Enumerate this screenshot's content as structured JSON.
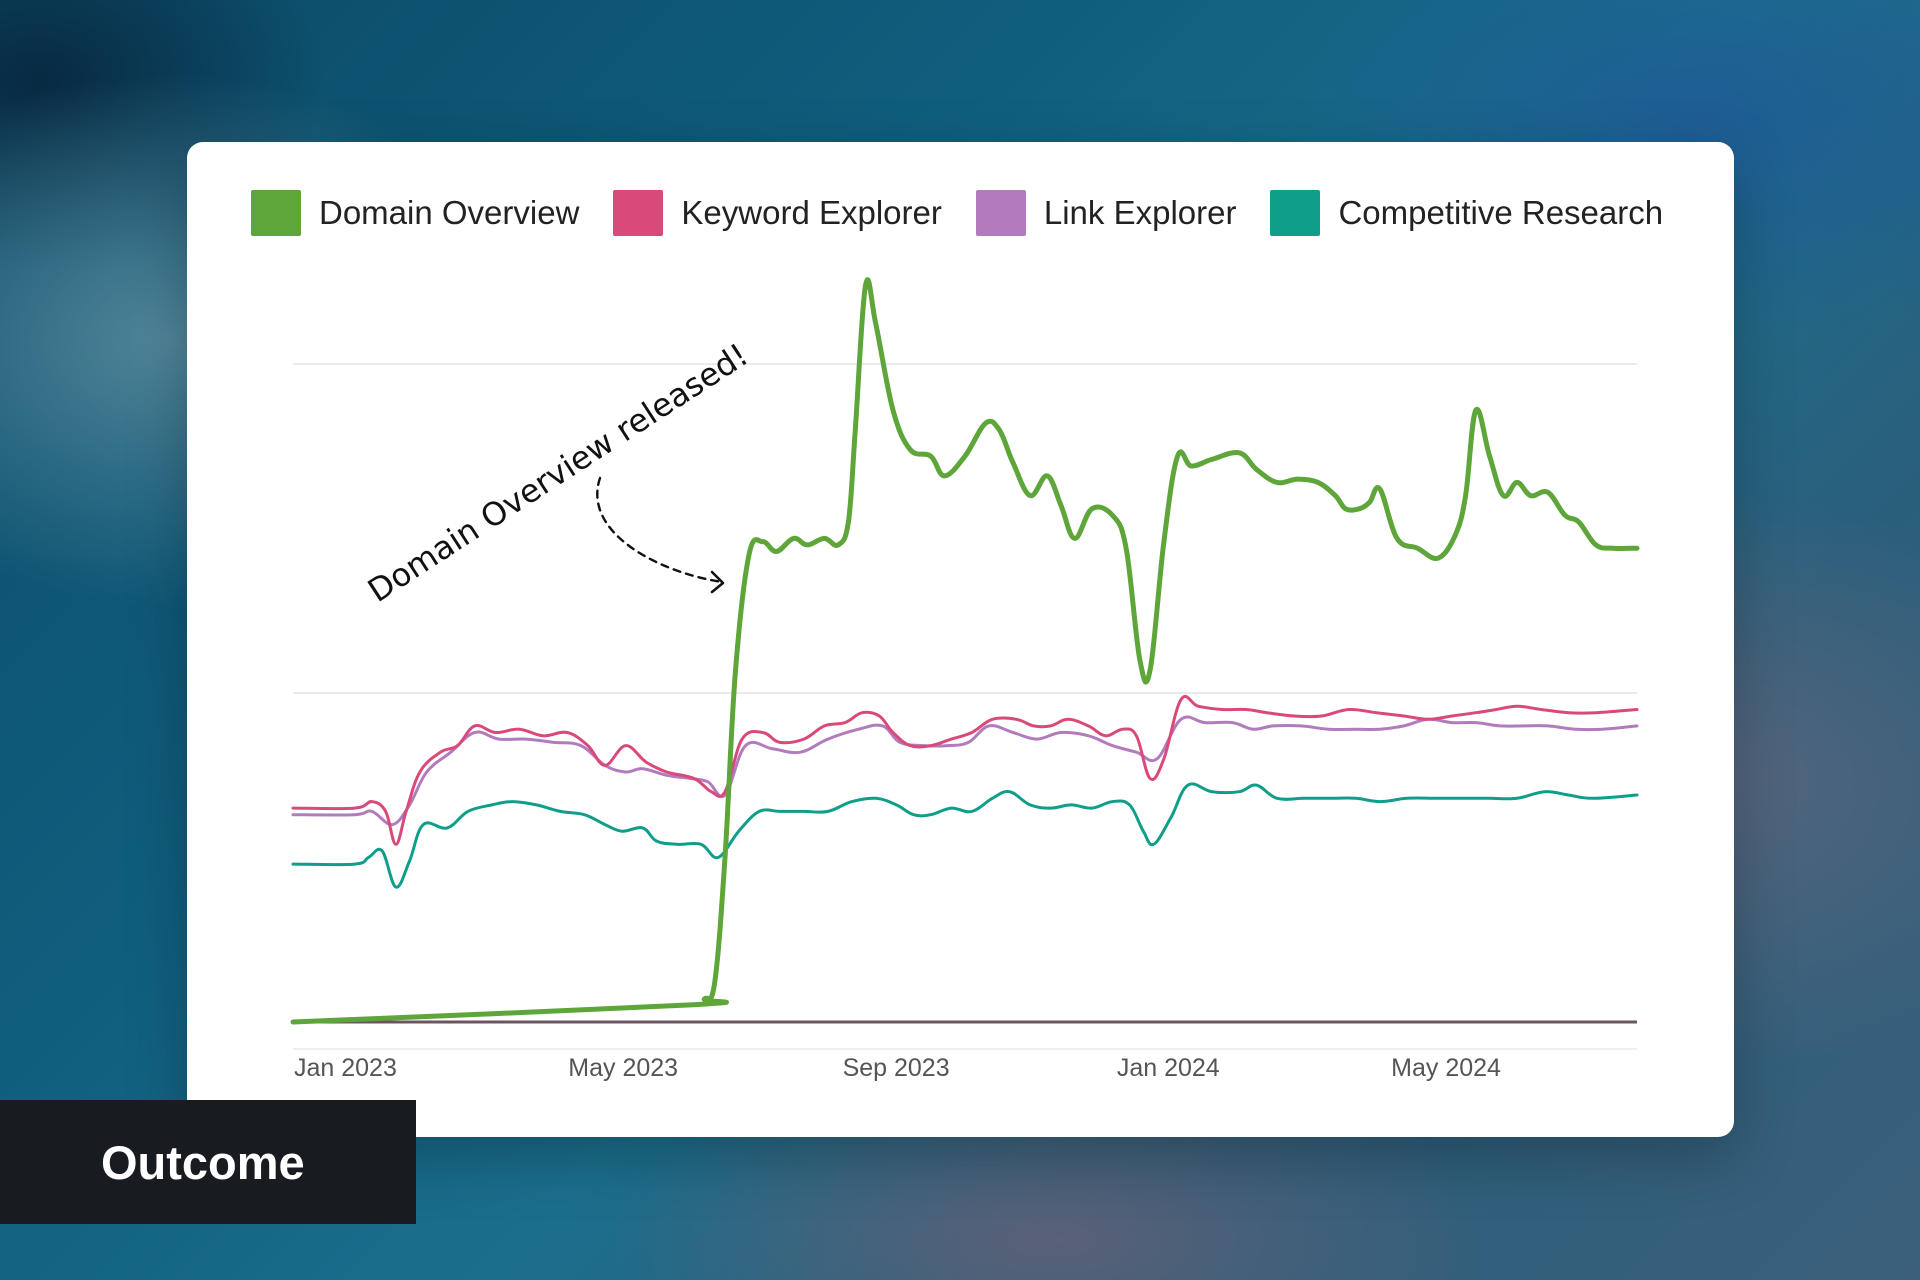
{
  "badge": {
    "label": "Outcome"
  },
  "annotation": {
    "text": "Domain Overview released!"
  },
  "chart_data": {
    "type": "line",
    "title": "",
    "xlabel": "",
    "ylabel": "",
    "legend_position": "top",
    "grid": true,
    "x_ticks": [
      "Jan 2023",
      "May 2023",
      "Sep 2023",
      "Jan 2024",
      "May 2024"
    ],
    "x_tick_months": [
      0,
      4,
      8,
      12,
      16
    ],
    "x_range_months": [
      0,
      19.6
    ],
    "y_range": [
      0,
      100
    ],
    "y_gridlines": [
      0,
      50,
      100
    ],
    "series": [
      {
        "name": "Domain Overview",
        "color": "#5ea53a",
        "points": [
          [
            0,
            0
          ],
          [
            5.8,
            2.6
          ],
          [
            6.0,
            3.5
          ],
          [
            6.15,
            6
          ],
          [
            6.3,
            25
          ],
          [
            6.45,
            53
          ],
          [
            6.65,
            71
          ],
          [
            6.85,
            73
          ],
          [
            7.05,
            71.5
          ],
          [
            7.3,
            73.5
          ],
          [
            7.5,
            72.5
          ],
          [
            7.75,
            73.5
          ],
          [
            7.95,
            72.5
          ],
          [
            8.1,
            76
          ],
          [
            8.2,
            90
          ],
          [
            8.35,
            112
          ],
          [
            8.5,
            106
          ],
          [
            8.75,
            93
          ],
          [
            9.0,
            87
          ],
          [
            9.3,
            86
          ],
          [
            9.5,
            83
          ],
          [
            9.8,
            86
          ],
          [
            10.1,
            91
          ],
          [
            10.3,
            90
          ],
          [
            10.5,
            85
          ],
          [
            10.75,
            80
          ],
          [
            11.0,
            83
          ],
          [
            11.2,
            78.5
          ],
          [
            11.4,
            73.5
          ],
          [
            11.65,
            78
          ],
          [
            11.95,
            77
          ],
          [
            12.15,
            72
          ],
          [
            12.35,
            55
          ],
          [
            12.5,
            53.5
          ],
          [
            12.7,
            73
          ],
          [
            12.9,
            86
          ],
          [
            13.1,
            84.5
          ],
          [
            13.4,
            85.5
          ],
          [
            13.8,
            86.5
          ],
          [
            14.05,
            84
          ],
          [
            14.35,
            82
          ],
          [
            14.65,
            82.5
          ],
          [
            14.95,
            82
          ],
          [
            15.2,
            80
          ],
          [
            15.35,
            78
          ],
          [
            15.55,
            78
          ],
          [
            15.7,
            79
          ],
          [
            15.85,
            81
          ],
          [
            16.1,
            73.5
          ],
          [
            16.4,
            72
          ],
          [
            16.7,
            70.5
          ],
          [
            16.95,
            74
          ],
          [
            17.1,
            80
          ],
          [
            17.25,
            93
          ],
          [
            17.45,
            86
          ],
          [
            17.65,
            80
          ],
          [
            17.85,
            82
          ],
          [
            18.05,
            80
          ],
          [
            18.3,
            80.5
          ],
          [
            18.55,
            77
          ],
          [
            18.75,
            76
          ],
          [
            19.0,
            72.5
          ],
          [
            19.25,
            72
          ],
          [
            19.6,
            72
          ]
        ]
      },
      {
        "name": "Keyword Explorer",
        "color": "#d9497a",
        "points": [
          [
            0,
            32.5
          ],
          [
            0.9,
            32.5
          ],
          [
            1.15,
            33.5
          ],
          [
            1.35,
            32
          ],
          [
            1.5,
            27
          ],
          [
            1.65,
            32
          ],
          [
            1.85,
            38
          ],
          [
            2.15,
            41
          ],
          [
            2.4,
            42
          ],
          [
            2.65,
            45
          ],
          [
            2.95,
            44
          ],
          [
            3.3,
            44.5
          ],
          [
            3.65,
            43.5
          ],
          [
            4.0,
            44
          ],
          [
            4.3,
            42
          ],
          [
            4.55,
            39
          ],
          [
            4.85,
            42
          ],
          [
            5.15,
            39.5
          ],
          [
            5.45,
            38
          ],
          [
            5.85,
            37
          ],
          [
            6.1,
            35
          ],
          [
            6.3,
            35
          ],
          [
            6.55,
            43
          ],
          [
            6.85,
            44
          ],
          [
            7.1,
            42.5
          ],
          [
            7.45,
            43
          ],
          [
            7.75,
            45
          ],
          [
            8.05,
            45.5
          ],
          [
            8.3,
            47
          ],
          [
            8.55,
            46.5
          ],
          [
            8.75,
            44
          ],
          [
            9.0,
            42
          ],
          [
            9.3,
            42
          ],
          [
            9.6,
            43
          ],
          [
            9.9,
            44
          ],
          [
            10.2,
            46
          ],
          [
            10.55,
            46
          ],
          [
            10.8,
            45
          ],
          [
            11.05,
            45
          ],
          [
            11.3,
            46
          ],
          [
            11.6,
            45
          ],
          [
            11.85,
            43.5
          ],
          [
            12.1,
            44.5
          ],
          [
            12.3,
            43.5
          ],
          [
            12.5,
            37
          ],
          [
            12.7,
            40
          ],
          [
            12.95,
            49
          ],
          [
            13.2,
            48
          ],
          [
            13.55,
            47.5
          ],
          [
            13.9,
            47.5
          ],
          [
            14.2,
            47
          ],
          [
            14.6,
            46.5
          ],
          [
            15.0,
            46.5
          ],
          [
            15.4,
            47.5
          ],
          [
            15.8,
            47
          ],
          [
            16.2,
            46.5
          ],
          [
            16.55,
            46
          ],
          [
            16.9,
            46.5
          ],
          [
            17.25,
            47
          ],
          [
            17.55,
            47.5
          ],
          [
            17.85,
            48
          ],
          [
            18.2,
            47.5
          ],
          [
            18.6,
            47
          ],
          [
            19.0,
            47
          ],
          [
            19.6,
            47.5
          ]
        ]
      },
      {
        "name": "Link Explorer",
        "color": "#b27bbd",
        "points": [
          [
            0,
            31.5
          ],
          [
            0.9,
            31.5
          ],
          [
            1.15,
            32
          ],
          [
            1.45,
            30
          ],
          [
            1.7,
            33
          ],
          [
            1.95,
            38
          ],
          [
            2.3,
            41
          ],
          [
            2.65,
            44
          ],
          [
            3.0,
            43
          ],
          [
            3.4,
            43
          ],
          [
            3.8,
            42.5
          ],
          [
            4.2,
            42
          ],
          [
            4.55,
            39
          ],
          [
            4.85,
            38
          ],
          [
            5.1,
            38.5
          ],
          [
            5.45,
            37.5
          ],
          [
            5.8,
            37
          ],
          [
            6.05,
            36.5
          ],
          [
            6.3,
            34.5
          ],
          [
            6.6,
            42
          ],
          [
            7.0,
            41.5
          ],
          [
            7.4,
            41
          ],
          [
            7.8,
            43
          ],
          [
            8.25,
            44.5
          ],
          [
            8.6,
            45
          ],
          [
            8.85,
            42.5
          ],
          [
            9.2,
            42
          ],
          [
            9.55,
            42
          ],
          [
            9.85,
            42.5
          ],
          [
            10.15,
            45
          ],
          [
            10.5,
            44
          ],
          [
            10.85,
            43
          ],
          [
            11.2,
            44
          ],
          [
            11.6,
            43.5
          ],
          [
            11.95,
            42
          ],
          [
            12.3,
            41
          ],
          [
            12.6,
            40
          ],
          [
            12.95,
            46
          ],
          [
            13.3,
            45.5
          ],
          [
            13.7,
            45.5
          ],
          [
            14.0,
            44.5
          ],
          [
            14.3,
            45
          ],
          [
            14.7,
            45
          ],
          [
            15.1,
            44.5
          ],
          [
            15.5,
            44.5
          ],
          [
            15.85,
            44.5
          ],
          [
            16.2,
            45
          ],
          [
            16.55,
            46
          ],
          [
            16.9,
            45.5
          ],
          [
            17.25,
            45.5
          ],
          [
            17.6,
            45
          ],
          [
            17.95,
            45
          ],
          [
            18.3,
            45
          ],
          [
            18.7,
            44.5
          ],
          [
            19.1,
            44.5
          ],
          [
            19.6,
            45
          ]
        ]
      },
      {
        "name": "Competitive Research",
        "color": "#0e9e8a",
        "points": [
          [
            0,
            24
          ],
          [
            0.9,
            24
          ],
          [
            1.1,
            25
          ],
          [
            1.3,
            26
          ],
          [
            1.5,
            20.5
          ],
          [
            1.7,
            24.5
          ],
          [
            1.9,
            30
          ],
          [
            2.25,
            29.5
          ],
          [
            2.55,
            32
          ],
          [
            2.9,
            33
          ],
          [
            3.2,
            33.5
          ],
          [
            3.55,
            33
          ],
          [
            3.9,
            32
          ],
          [
            4.25,
            31.5
          ],
          [
            4.55,
            30
          ],
          [
            4.8,
            29
          ],
          [
            5.1,
            29.5
          ],
          [
            5.3,
            27.5
          ],
          [
            5.6,
            27
          ],
          [
            5.95,
            27
          ],
          [
            6.2,
            25
          ],
          [
            6.5,
            29
          ],
          [
            6.8,
            32
          ],
          [
            7.1,
            32
          ],
          [
            7.45,
            32
          ],
          [
            7.8,
            32
          ],
          [
            8.15,
            33.5
          ],
          [
            8.5,
            34
          ],
          [
            8.8,
            33
          ],
          [
            9.05,
            31.5
          ],
          [
            9.3,
            31.5
          ],
          [
            9.6,
            32.5
          ],
          [
            9.9,
            32
          ],
          [
            10.2,
            34
          ],
          [
            10.45,
            35
          ],
          [
            10.75,
            33
          ],
          [
            11.05,
            32.5
          ],
          [
            11.35,
            33
          ],
          [
            11.65,
            32.5
          ],
          [
            11.95,
            33.5
          ],
          [
            12.2,
            33
          ],
          [
            12.4,
            29
          ],
          [
            12.55,
            27
          ],
          [
            12.8,
            31
          ],
          [
            13.05,
            36
          ],
          [
            13.4,
            35
          ],
          [
            13.8,
            35
          ],
          [
            14.05,
            36
          ],
          [
            14.35,
            34
          ],
          [
            14.75,
            34
          ],
          [
            15.15,
            34
          ],
          [
            15.5,
            34
          ],
          [
            15.85,
            33.5
          ],
          [
            16.25,
            34
          ],
          [
            16.65,
            34
          ],
          [
            17.05,
            34
          ],
          [
            17.45,
            34
          ],
          [
            17.85,
            34
          ],
          [
            18.25,
            35
          ],
          [
            18.6,
            34.5
          ],
          [
            18.95,
            34
          ],
          [
            19.6,
            34.5
          ]
        ]
      }
    ]
  }
}
